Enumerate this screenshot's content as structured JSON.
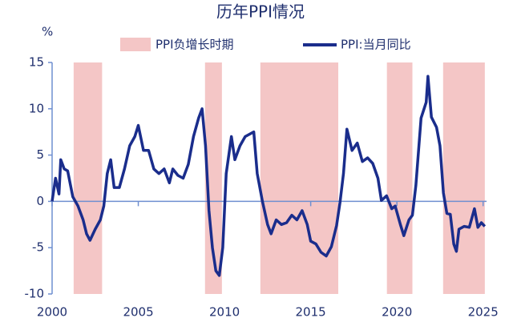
{
  "chart_data": {
    "type": "line",
    "title": "历年PPI情况",
    "y_label": "%",
    "xlim": [
      2000,
      2025.2
    ],
    "xticks": [
      2000,
      2005,
      2010,
      2015,
      2020,
      2025
    ],
    "ylim": [
      -10,
      15
    ],
    "yticks": [
      -10,
      -5,
      0,
      5,
      10,
      15
    ],
    "shaded": {
      "name": "PPI负增长时期",
      "color": "#f4c6c6",
      "periods": [
        [
          2001.25,
          2002.9
        ],
        [
          2008.87,
          2009.85
        ],
        [
          2012.08,
          2016.6
        ],
        [
          2019.42,
          2020.9
        ],
        [
          2022.68,
          2025.1
        ]
      ]
    },
    "series": [
      {
        "name": "PPI:当月同比",
        "color": "#1a2d8c",
        "x": [
          2000.0,
          2000.2,
          2000.4,
          2000.5,
          2000.7,
          2000.9,
          2001.2,
          2001.5,
          2001.8,
          2002.0,
          2002.2,
          2002.5,
          2002.8,
          2003.0,
          2003.2,
          2003.4,
          2003.6,
          2003.9,
          2004.2,
          2004.5,
          2004.8,
          2005.0,
          2005.3,
          2005.6,
          2005.9,
          2006.2,
          2006.5,
          2006.8,
          2007.0,
          2007.3,
          2007.6,
          2007.9,
          2008.2,
          2008.5,
          2008.7,
          2008.9,
          2009.1,
          2009.3,
          2009.5,
          2009.7,
          2009.9,
          2010.1,
          2010.4,
          2010.6,
          2010.9,
          2011.2,
          2011.5,
          2011.7,
          2011.9,
          2012.2,
          2012.5,
          2012.7,
          2013.0,
          2013.3,
          2013.6,
          2013.9,
          2014.2,
          2014.5,
          2014.8,
          2015.0,
          2015.3,
          2015.6,
          2015.9,
          2016.2,
          2016.5,
          2016.7,
          2016.9,
          2017.1,
          2017.4,
          2017.7,
          2018.0,
          2018.3,
          2018.6,
          2018.9,
          2019.1,
          2019.4,
          2019.7,
          2019.9,
          2020.2,
          2020.4,
          2020.7,
          2020.9,
          2021.1,
          2021.4,
          2021.7,
          2021.8,
          2022.0,
          2022.3,
          2022.5,
          2022.7,
          2022.9,
          2023.1,
          2023.3,
          2023.45,
          2023.6,
          2023.9,
          2024.2,
          2024.5,
          2024.7,
          2024.9,
          2025.1
        ],
        "values": [
          0,
          2.5,
          0.8,
          4.5,
          3.5,
          3.3,
          0.5,
          -0.5,
          -2,
          -3.5,
          -4.2,
          -3,
          -2,
          -0.5,
          3,
          4.5,
          1.5,
          1.5,
          3.5,
          6,
          7,
          8.2,
          5.5,
          5.5,
          3.5,
          3,
          3.5,
          2,
          3.5,
          2.8,
          2.5,
          4,
          7,
          9,
          10,
          6,
          -1,
          -5,
          -7.5,
          -8,
          -5,
          3,
          7,
          4.5,
          6,
          7,
          7.3,
          7.5,
          3,
          0,
          -2.5,
          -3.5,
          -2,
          -2.5,
          -2.3,
          -1.5,
          -2,
          -1,
          -2.5,
          -4.3,
          -4.6,
          -5.5,
          -5.9,
          -4.9,
          -2.6,
          -0.1,
          3,
          7.8,
          5.5,
          6.3,
          4.3,
          4.7,
          4.1,
          2.5,
          0.1,
          0.6,
          -0.8,
          -0.5,
          -2.5,
          -3.7,
          -2,
          -1.5,
          1.7,
          9,
          10.7,
          13.5,
          9.1,
          8,
          6,
          0.9,
          -1.3,
          -1.4,
          -4.6,
          -5.4,
          -3,
          -2.7,
          -2.8,
          -0.8,
          -2.8,
          -2.3,
          -2.7
        ]
      }
    ]
  }
}
